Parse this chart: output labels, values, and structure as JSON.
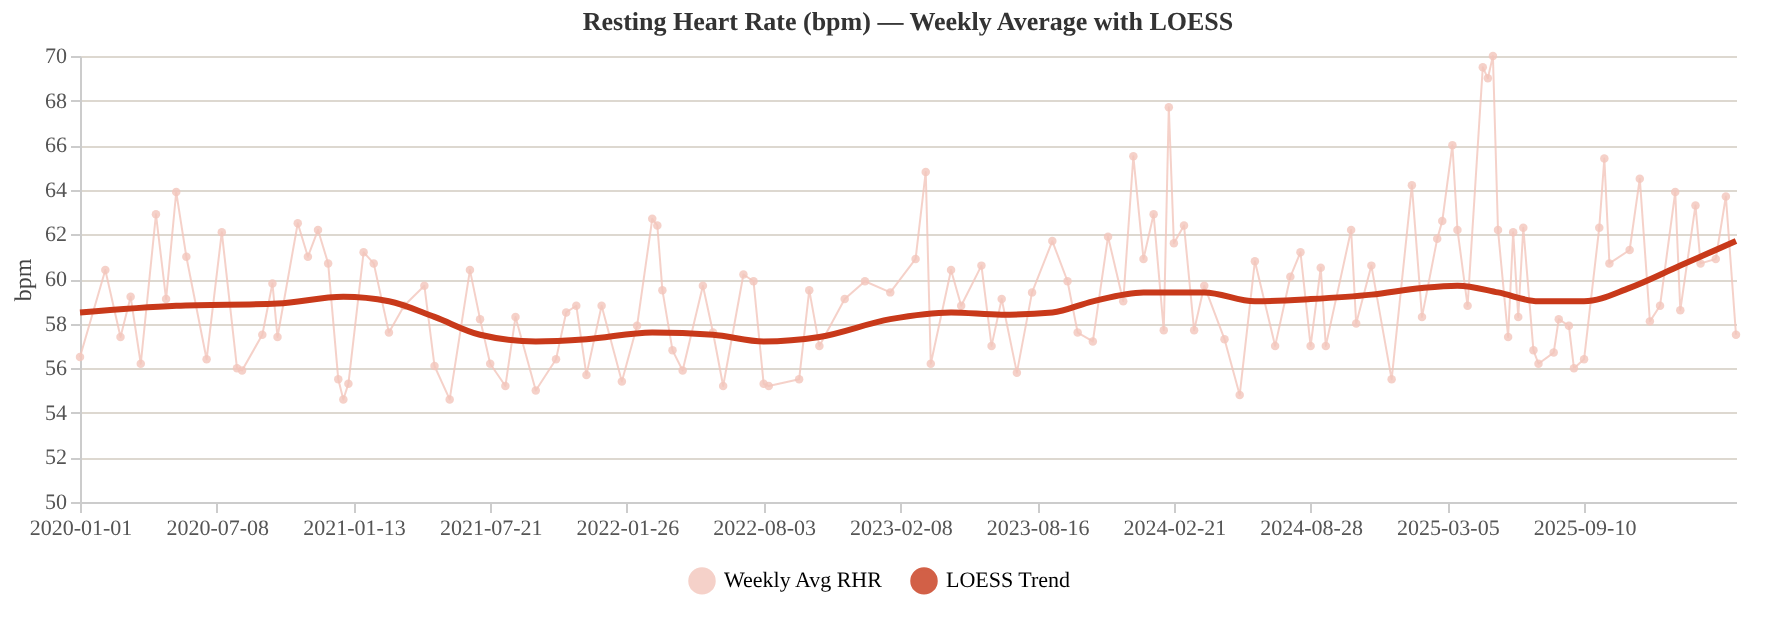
{
  "chart_data": {
    "type": "line",
    "title": "Resting Heart Rate (bpm) — Weekly Average with LOESS",
    "ylabel": "bpm",
    "xlim": [
      "2020-01-01",
      "2026-04-08"
    ],
    "xticks": [
      "2020-01-01",
      "2020-07-08",
      "2021-01-13",
      "2021-07-21",
      "2022-01-26",
      "2022-08-03",
      "2023-02-08",
      "2023-08-16",
      "2024-02-21",
      "2024-08-28",
      "2025-03-05",
      "2025-09-10"
    ],
    "ylim": [
      50,
      70
    ],
    "yticks": [
      50,
      52,
      54,
      56,
      58,
      60,
      62,
      64,
      66,
      68,
      70
    ],
    "grid": "y",
    "legend": "bottom",
    "series": [
      {
        "name": "Weekly Avg RHR",
        "color": "#f3c6bc",
        "marker": "circle",
        "x": [
          "2020-01-01",
          "2020-02-05",
          "2020-02-26",
          "2020-03-11",
          "2020-03-25",
          "2020-04-15",
          "2020-04-29",
          "2020-05-13",
          "2020-05-27",
          "2020-06-24",
          "2020-07-15",
          "2020-08-05",
          "2020-08-12",
          "2020-09-09",
          "2020-09-23",
          "2020-09-30",
          "2020-10-28",
          "2020-11-11",
          "2020-11-25",
          "2020-12-09",
          "2020-12-23",
          "2020-12-30",
          "2021-01-06",
          "2021-01-27",
          "2021-02-10",
          "2021-03-03",
          "2021-03-24",
          "2021-04-21",
          "2021-05-05",
          "2021-05-26",
          "2021-06-23",
          "2021-07-07",
          "2021-07-21",
          "2021-08-11",
          "2021-08-25",
          "2021-09-22",
          "2021-10-20",
          "2021-11-03",
          "2021-11-17",
          "2021-12-01",
          "2021-12-22",
          "2022-01-19",
          "2022-02-09",
          "2022-03-02",
          "2022-03-09",
          "2022-03-16",
          "2022-03-30",
          "2022-04-13",
          "2022-05-11",
          "2022-05-25",
          "2022-06-08",
          "2022-07-06",
          "2022-07-20",
          "2022-08-03",
          "2022-08-10",
          "2022-09-21",
          "2022-10-05",
          "2022-10-19",
          "2022-11-23",
          "2022-12-21",
          "2023-01-25",
          "2023-03-01",
          "2023-03-15",
          "2023-03-22",
          "2023-04-19",
          "2023-05-03",
          "2023-05-31",
          "2023-06-14",
          "2023-06-28",
          "2023-07-19",
          "2023-08-09",
          "2023-09-06",
          "2023-09-27",
          "2023-10-11",
          "2023-11-01",
          "2023-11-22",
          "2023-12-13",
          "2023-12-27",
          "2024-01-10",
          "2024-01-24",
          "2024-02-07",
          "2024-02-14",
          "2024-02-21",
          "2024-03-06",
          "2024-03-20",
          "2024-04-03",
          "2024-05-01",
          "2024-05-22",
          "2024-06-12",
          "2024-07-10",
          "2024-07-31",
          "2024-08-14",
          "2024-08-28",
          "2024-09-11",
          "2024-09-18",
          "2024-10-23",
          "2024-10-30",
          "2024-11-20",
          "2024-12-18",
          "2025-01-15",
          "2025-01-29",
          "2025-02-19",
          "2025-02-26",
          "2025-03-12",
          "2025-03-19",
          "2025-04-02",
          "2025-04-23",
          "2025-04-30",
          "2025-05-07",
          "2025-05-14",
          "2025-05-28",
          "2025-06-04",
          "2025-06-11",
          "2025-06-18",
          "2025-07-02",
          "2025-07-09",
          "2025-07-30",
          "2025-08-06",
          "2025-08-20",
          "2025-08-27",
          "2025-09-10",
          "2025-10-01",
          "2025-10-08",
          "2025-10-15",
          "2025-11-12",
          "2025-11-26",
          "2025-12-10",
          "2025-12-24",
          "2026-01-14",
          "2026-01-21",
          "2026-02-11",
          "2026-02-18",
          "2026-03-11",
          "2026-03-25",
          "2026-04-08"
        ],
        "values": [
          56.5,
          60.4,
          57.4,
          59.2,
          56.2,
          62.9,
          59.1,
          63.9,
          61.0,
          56.4,
          62.1,
          56.0,
          55.9,
          57.5,
          59.8,
          57.4,
          62.5,
          61.0,
          62.2,
          60.7,
          55.5,
          54.6,
          55.3,
          61.2,
          60.7,
          57.6,
          58.8,
          59.7,
          56.1,
          54.6,
          60.4,
          58.2,
          56.2,
          55.2,
          58.3,
          55.0,
          56.4,
          58.5,
          58.8,
          55.7,
          58.8,
          55.4,
          57.9,
          62.7,
          62.4,
          59.5,
          56.8,
          55.9,
          59.7,
          57.6,
          55.2,
          60.2,
          59.9,
          55.3,
          55.2,
          55.5,
          59.5,
          57.0,
          59.1,
          59.9,
          59.4,
          60.9,
          64.8,
          56.2,
          60.4,
          58.8,
          60.6,
          57.0,
          59.1,
          55.8,
          59.4,
          61.7,
          59.9,
          57.6,
          57.2,
          61.9,
          59.0,
          65.5,
          60.9,
          62.9,
          57.7,
          67.7,
          61.6,
          62.4,
          57.7,
          59.7,
          57.3,
          54.8,
          60.8,
          57.0,
          60.1,
          61.2,
          57.0,
          60.5,
          57.0,
          62.2,
          58.0,
          60.6,
          55.5,
          64.2,
          58.3,
          61.8,
          62.6,
          66.0,
          62.2,
          58.8,
          69.5,
          69.0,
          70.0,
          62.2,
          57.4,
          62.1,
          58.3,
          62.3,
          56.8,
          56.2,
          56.7,
          58.2,
          57.9,
          56.0,
          56.4,
          62.3,
          65.4,
          60.7,
          61.3,
          64.5,
          58.1,
          58.8,
          63.9,
          58.6,
          63.3,
          60.7,
          60.9,
          63.7,
          57.5
        ]
      },
      {
        "name": "LOESS Trend",
        "color": "#c8391a",
        "marker": "none",
        "x": [
          "2020-01-01",
          "2020-05-13",
          "2020-09-30",
          "2020-12-30",
          "2021-03-03",
          "2021-05-05",
          "2021-07-07",
          "2021-09-22",
          "2021-12-01",
          "2022-03-02",
          "2022-05-25",
          "2022-08-03",
          "2022-10-19",
          "2023-01-25",
          "2023-04-19",
          "2023-06-28",
          "2023-09-06",
          "2023-11-01",
          "2024-01-10",
          "2024-04-03",
          "2024-06-12",
          "2024-08-28",
          "2024-11-20",
          "2025-01-29",
          "2025-03-19",
          "2025-05-14",
          "2025-07-09",
          "2025-09-10",
          "2025-11-12",
          "2026-01-21",
          "2026-04-08"
        ],
        "values": [
          58.5,
          58.8,
          58.9,
          59.2,
          59.0,
          58.3,
          57.5,
          57.2,
          57.3,
          57.6,
          57.5,
          57.2,
          57.4,
          58.2,
          58.5,
          58.4,
          58.5,
          59.0,
          59.4,
          59.4,
          59.0,
          59.1,
          59.3,
          59.6,
          59.7,
          59.4,
          59.0,
          59.0,
          59.6,
          60.6,
          61.7
        ]
      }
    ]
  }
}
